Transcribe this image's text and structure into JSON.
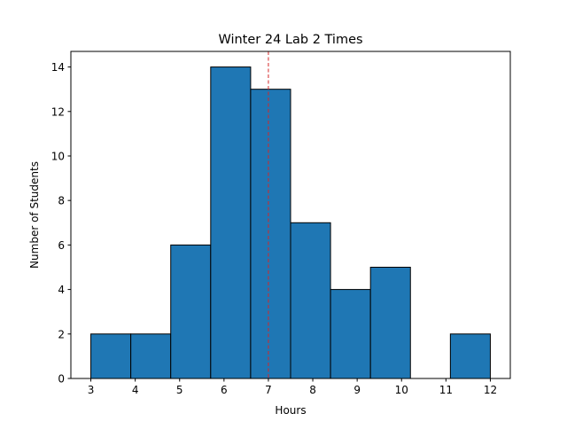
{
  "chart_data": {
    "type": "bar",
    "subtype": "histogram",
    "title": "Winter 24 Lab 2 Times",
    "xlabel": "Hours",
    "ylabel": "Number of Students",
    "bin_edges": [
      3,
      3.9,
      4.8,
      5.7,
      6.6,
      7.5,
      8.4,
      9.3,
      10.2,
      11.1,
      12
    ],
    "values": [
      2,
      2,
      6,
      14,
      13,
      7,
      4,
      5,
      0,
      2
    ],
    "xlim": [
      2.55,
      12.45
    ],
    "ylim": [
      0,
      14.7
    ],
    "xticks": [
      3,
      4,
      5,
      6,
      7,
      8,
      9,
      10,
      11,
      12
    ],
    "yticks": [
      0,
      2,
      4,
      6,
      8,
      10,
      12,
      14
    ],
    "reference_line": {
      "x": 7,
      "style": "dashed",
      "color": "#d62728"
    },
    "bar_color": "#1f77b4",
    "edge_color": "#000000",
    "grid": false
  }
}
